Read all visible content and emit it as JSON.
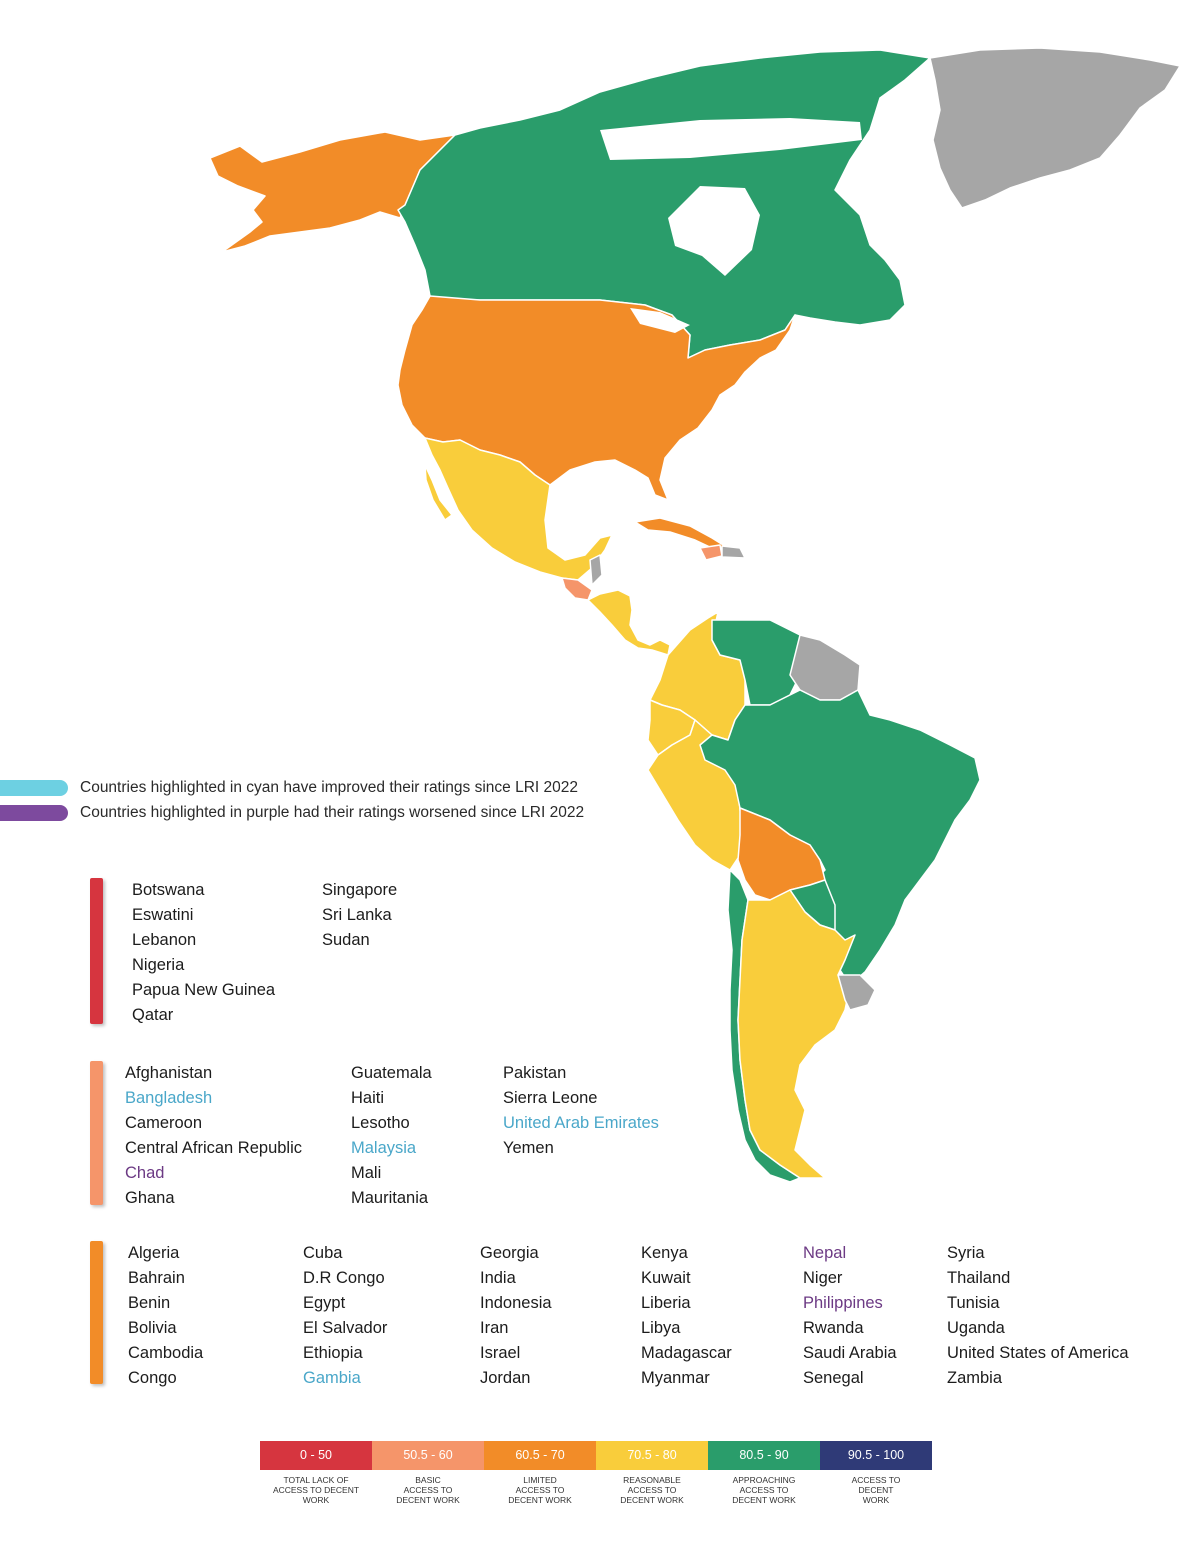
{
  "colors": {
    "dark_green": "#2a9d6b",
    "yellow": "#f9cd3b",
    "orange": "#f28c28",
    "salmon": "#f5956a",
    "red": "#d6353f",
    "navy": "#2f3a77",
    "gray": "#a6a6a6",
    "cyan": "#6dd0e2",
    "purple": "#7d4a9e"
  },
  "notes": [
    {
      "text": "Countries highlighted in cyan have improved their ratings since LRI 2022",
      "color": "#6dd0e2"
    },
    {
      "text": "Countries highlighted in purple had their ratings worsened since LRI 2022",
      "color": "#7d4a9e"
    }
  ],
  "groups": [
    {
      "color": "#d6353f",
      "columns": [
        [
          {
            "name": "Botswana",
            "status": ""
          },
          {
            "name": "Eswatini",
            "status": ""
          },
          {
            "name": "Lebanon",
            "status": ""
          },
          {
            "name": "Nigeria",
            "status": ""
          },
          {
            "name": "Papua New Guinea",
            "status": ""
          },
          {
            "name": "Qatar",
            "status": ""
          }
        ],
        [
          {
            "name": "Singapore",
            "status": ""
          },
          {
            "name": "Sri Lanka",
            "status": ""
          },
          {
            "name": "Sudan",
            "status": ""
          }
        ]
      ]
    },
    {
      "color": "#f5956a",
      "columns": [
        [
          {
            "name": "Afghanistan",
            "status": ""
          },
          {
            "name": "Bangladesh",
            "status": "improved"
          },
          {
            "name": "Cameroon",
            "status": ""
          },
          {
            "name": "Central African Republic",
            "status": ""
          },
          {
            "name": "Chad",
            "status": "worsened"
          },
          {
            "name": "Ghana",
            "status": ""
          }
        ],
        [
          {
            "name": "Guatemala",
            "status": ""
          },
          {
            "name": "Haiti",
            "status": ""
          },
          {
            "name": "Lesotho",
            "status": ""
          },
          {
            "name": "Malaysia",
            "status": "improved"
          },
          {
            "name": "Mali",
            "status": ""
          },
          {
            "name": "Mauritania",
            "status": ""
          }
        ],
        [
          {
            "name": "Pakistan",
            "status": ""
          },
          {
            "name": "Sierra Leone",
            "status": ""
          },
          {
            "name": "United Arab Emirates",
            "status": "improved"
          },
          {
            "name": "Yemen",
            "status": ""
          }
        ]
      ]
    },
    {
      "color": "#f28c28",
      "columns": [
        [
          {
            "name": "Algeria",
            "status": ""
          },
          {
            "name": "Bahrain",
            "status": ""
          },
          {
            "name": "Benin",
            "status": ""
          },
          {
            "name": "Bolivia",
            "status": ""
          },
          {
            "name": "Cambodia",
            "status": ""
          },
          {
            "name": "Congo",
            "status": ""
          }
        ],
        [
          {
            "name": "Cuba",
            "status": ""
          },
          {
            "name": "D.R Congo",
            "status": ""
          },
          {
            "name": "Egypt",
            "status": ""
          },
          {
            "name": "El Salvador",
            "status": ""
          },
          {
            "name": "Ethiopia",
            "status": ""
          },
          {
            "name": "Gambia",
            "status": "improved"
          }
        ],
        [
          {
            "name": "Georgia",
            "status": ""
          },
          {
            "name": "India",
            "status": ""
          },
          {
            "name": "Indonesia",
            "status": ""
          },
          {
            "name": "Iran",
            "status": ""
          },
          {
            "name": "Israel",
            "status": ""
          },
          {
            "name": "Jordan",
            "status": ""
          }
        ],
        [
          {
            "name": "Kenya",
            "status": ""
          },
          {
            "name": "Kuwait",
            "status": ""
          },
          {
            "name": "Liberia",
            "status": ""
          },
          {
            "name": "Libya",
            "status": ""
          },
          {
            "name": "Madagascar",
            "status": ""
          },
          {
            "name": "Myanmar",
            "status": ""
          }
        ],
        [
          {
            "name": "Nepal",
            "status": "worsened"
          },
          {
            "name": "Niger",
            "status": ""
          },
          {
            "name": "Philippines",
            "status": "worsened"
          },
          {
            "name": "Rwanda",
            "status": ""
          },
          {
            "name": "Saudi Arabia",
            "status": ""
          },
          {
            "name": "Senegal",
            "status": ""
          }
        ],
        [
          {
            "name": "Syria",
            "status": ""
          },
          {
            "name": "Thailand",
            "status": ""
          },
          {
            "name": "Tunisia",
            "status": ""
          },
          {
            "name": "Uganda",
            "status": ""
          },
          {
            "name": "United States of America",
            "status": ""
          },
          {
            "name": "Zambia",
            "status": ""
          }
        ]
      ]
    }
  ],
  "scale": [
    {
      "range": "0 - 50",
      "caption": [
        "Total lack of",
        "access to decent",
        "work"
      ],
      "color": "#d6353f"
    },
    {
      "range": "50.5 - 60",
      "caption": [
        "Basic",
        "access to",
        "decent work"
      ],
      "color": "#f5956a"
    },
    {
      "range": "60.5 - 70",
      "caption": [
        "Limited",
        "access to",
        "decent work"
      ],
      "color": "#f28c28"
    },
    {
      "range": "70.5 - 80",
      "caption": [
        "Reasonable",
        "access to",
        "decent work"
      ],
      "color": "#f9cd3b"
    },
    {
      "range": "80.5 - 90",
      "caption": [
        "Approaching",
        "access to",
        "decent work"
      ],
      "color": "#2a9d6b"
    },
    {
      "range": "90.5 - 100",
      "caption": [
        "Access to",
        "decent",
        "work"
      ],
      "color": "#2f3a77"
    }
  ],
  "map_regions": [
    {
      "id": "alaska",
      "fill": "orange"
    },
    {
      "id": "canada",
      "fill": "dark_green"
    },
    {
      "id": "greenland",
      "fill": "gray"
    },
    {
      "id": "usa",
      "fill": "orange"
    },
    {
      "id": "mexico",
      "fill": "yellow"
    },
    {
      "id": "guatemala",
      "fill": "salmon"
    },
    {
      "id": "belize",
      "fill": "gray"
    },
    {
      "id": "central-america",
      "fill": "yellow"
    },
    {
      "id": "cuba",
      "fill": "orange"
    },
    {
      "id": "haiti",
      "fill": "salmon"
    },
    {
      "id": "dominican-rep",
      "fill": "gray"
    },
    {
      "id": "colombia",
      "fill": "yellow"
    },
    {
      "id": "venezuela",
      "fill": "dark_green"
    },
    {
      "id": "guianas",
      "fill": "gray"
    },
    {
      "id": "ecuador",
      "fill": "yellow"
    },
    {
      "id": "peru",
      "fill": "yellow"
    },
    {
      "id": "brazil",
      "fill": "dark_green"
    },
    {
      "id": "bolivia",
      "fill": "orange"
    },
    {
      "id": "paraguay",
      "fill": "dark_green"
    },
    {
      "id": "chile",
      "fill": "dark_green"
    },
    {
      "id": "argentina",
      "fill": "yellow"
    },
    {
      "id": "uruguay",
      "fill": "gray"
    }
  ]
}
